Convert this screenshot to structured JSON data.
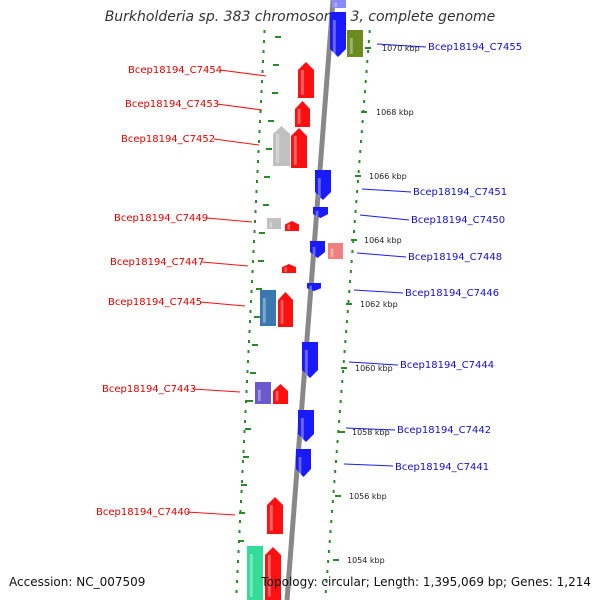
{
  "title": "Burkholderia sp. 383 chromosome 3, complete genome",
  "footer": {
    "accession": "Accession: NC_007509",
    "summary": "Topology: circular; Length: 1,395,069 bp; Genes: 1,214"
  },
  "colors": {
    "forward_strand": "#ff1010",
    "reverse_strand": "#1a1aff",
    "backbone": "#888888",
    "ticks": "#2a8a2a"
  },
  "positions_kbp": [
    "1070 kbp",
    "1068 kbp",
    "1066 kbp",
    "1064 kbp",
    "1062 kbp",
    "1060 kbp",
    "1058 kbp",
    "1056 kbp",
    "1054 kbp"
  ],
  "left_labels": [
    "Bcep18194_C7454",
    "Bcep18194_C7453",
    "Bcep18194_C7452",
    "Bcep18194_C7449",
    "Bcep18194_C7447",
    "Bcep18194_C7445",
    "Bcep18194_C7443",
    "Bcep18194_C7440"
  ],
  "right_labels": [
    "Bcep18194_C7455",
    "Bcep18194_C7451",
    "Bcep18194_C7450",
    "Bcep18194_C7448",
    "Bcep18194_C7446",
    "Bcep18194_C7444",
    "Bcep18194_C7442",
    "Bcep18194_C7441"
  ]
}
